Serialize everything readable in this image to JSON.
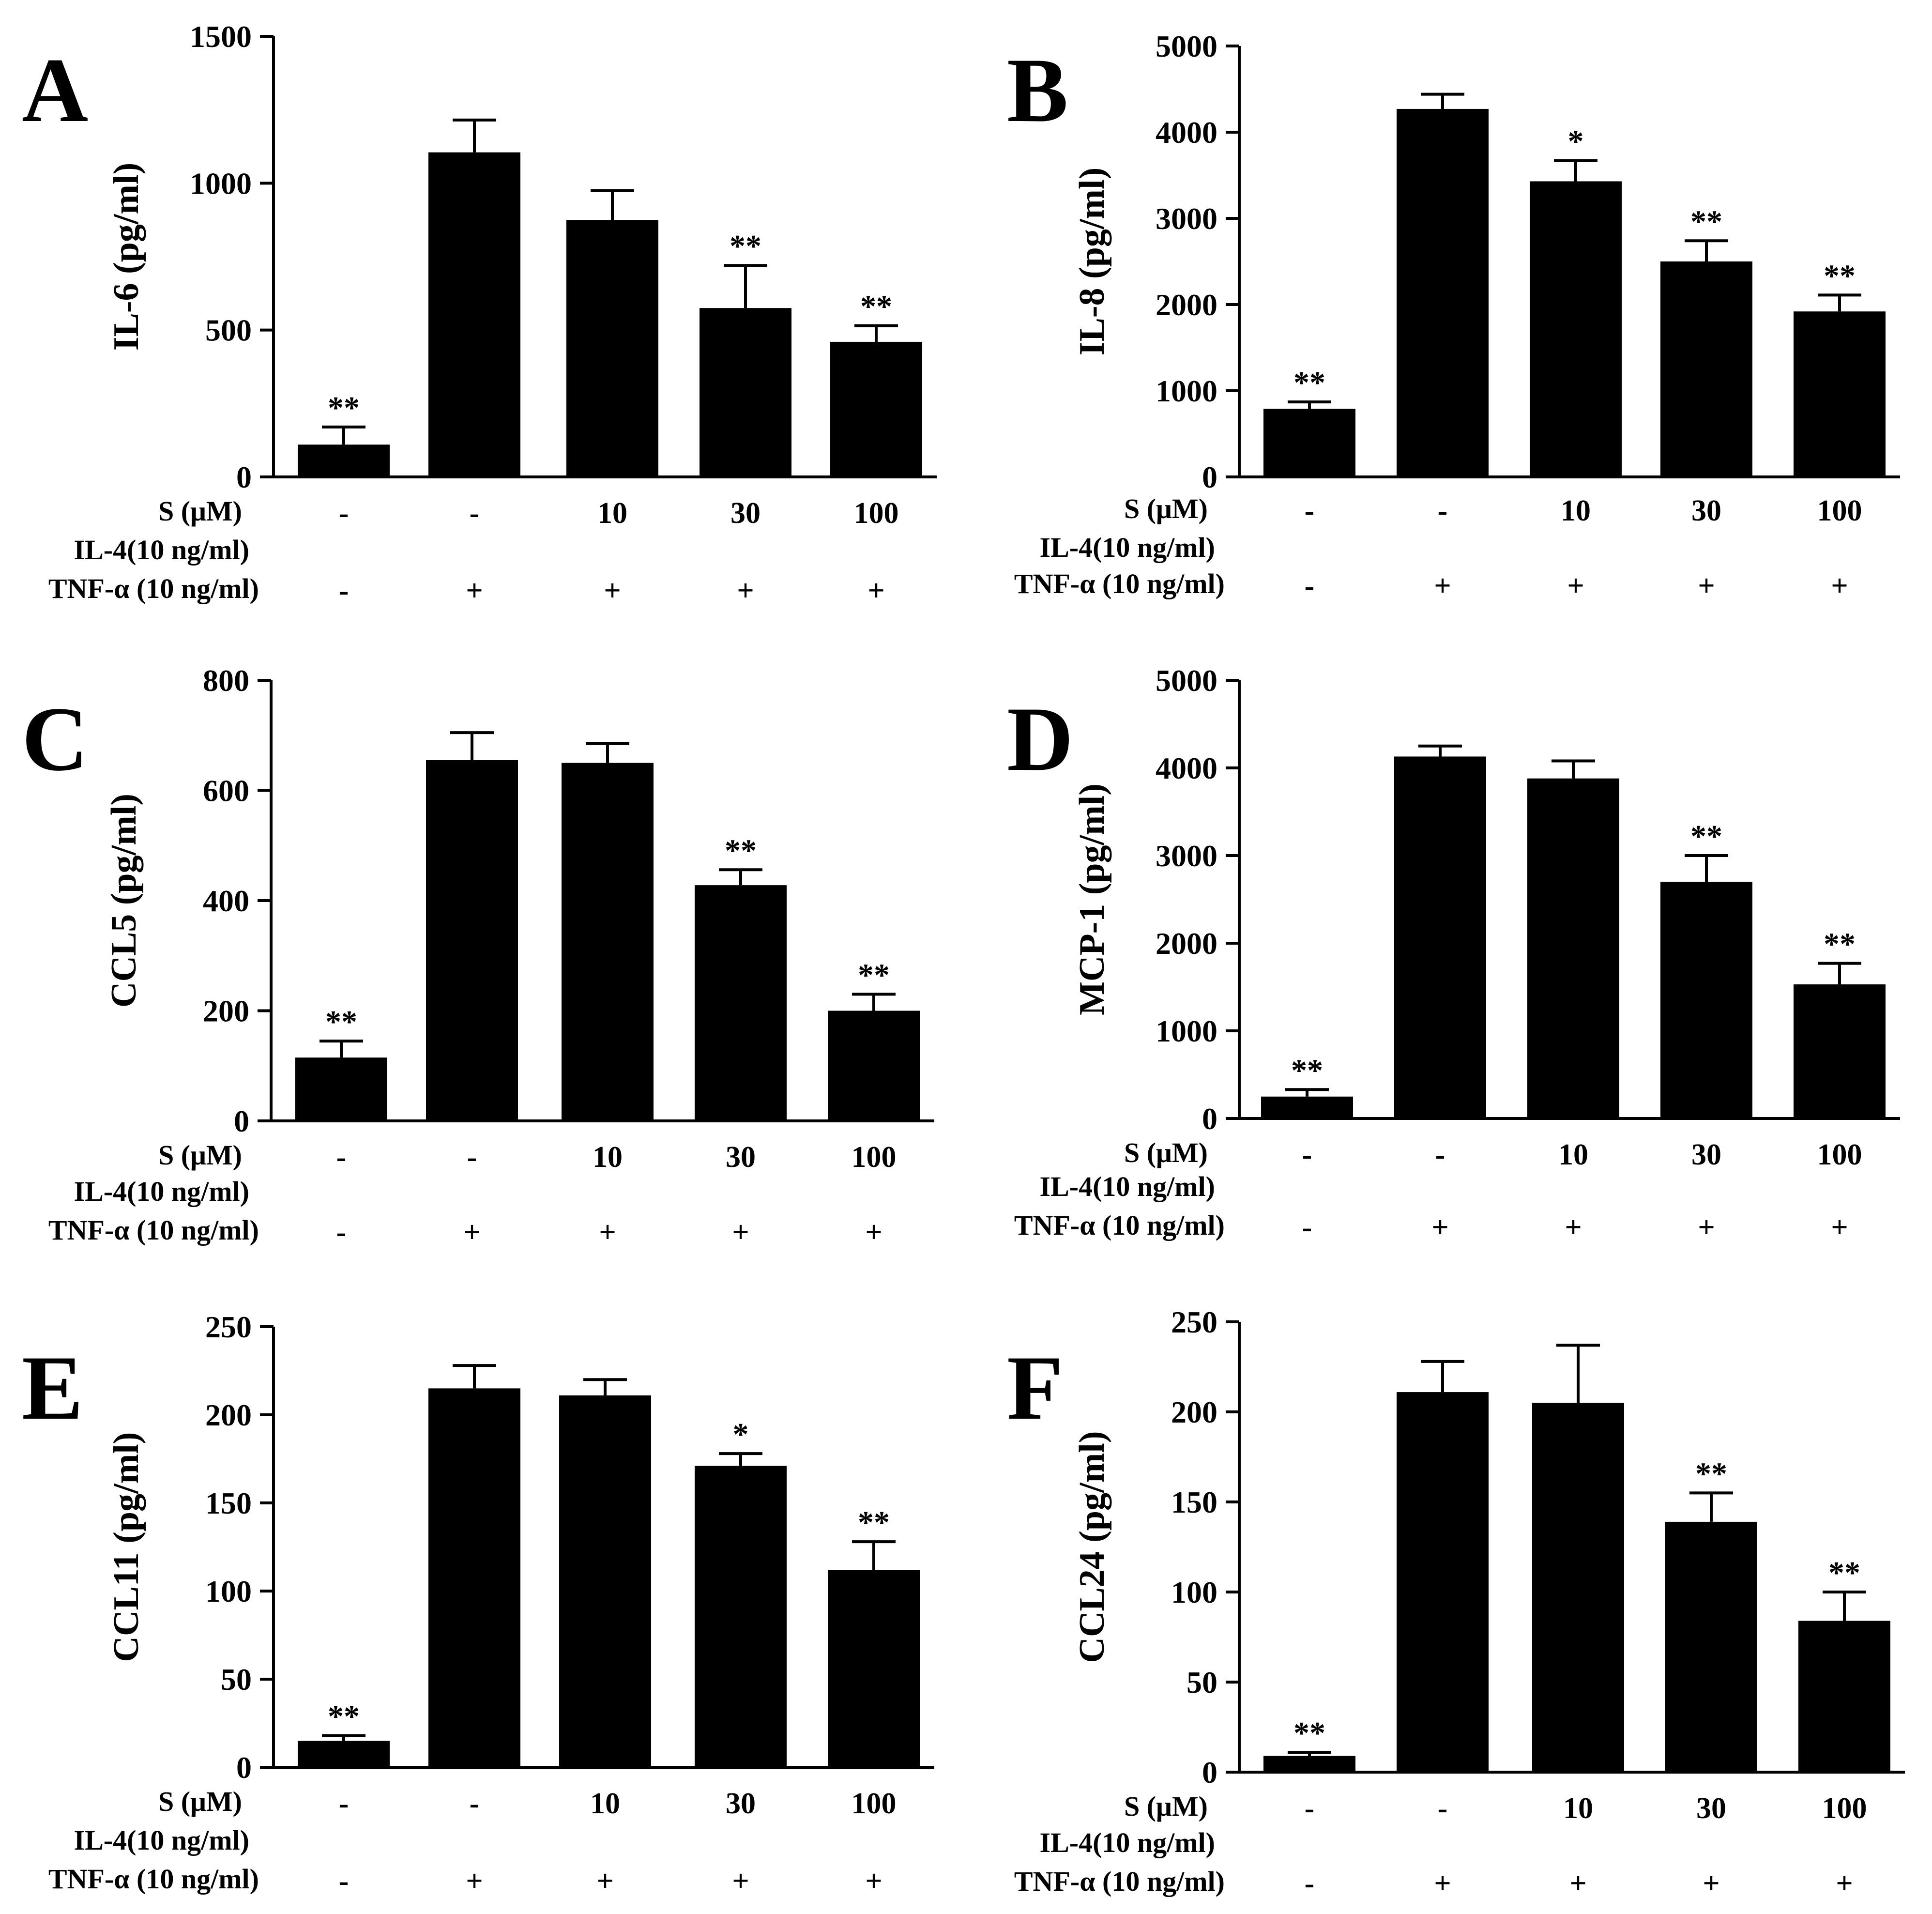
{
  "colors": {
    "bar": "#000000",
    "axis": "#000000",
    "background": "#ffffff"
  },
  "rows": {
    "s_label": "S (μM)",
    "il4_label": "IL-4(10 ng/ml)",
    "tnf_label": "TNF-α (10 ng/ml)"
  },
  "chart_data": [
    {
      "panel": "A",
      "type": "bar",
      "ylabel": "IL-6 (pg/ml)",
      "ylim": [
        0,
        1500
      ],
      "yticks": [
        0,
        500,
        1000,
        1500
      ],
      "categories": [
        "-",
        "-",
        "10",
        "30",
        "100"
      ],
      "s_values": [
        "-",
        "-",
        "10",
        "30",
        "100"
      ],
      "tnf_values": [
        "-",
        "+",
        "+",
        "+",
        "+"
      ],
      "values": [
        110,
        1105,
        875,
        575,
        460
      ],
      "errors": [
        60,
        110,
        100,
        145,
        55
      ],
      "significance": [
        "**",
        "",
        "",
        "**",
        "**"
      ]
    },
    {
      "panel": "B",
      "type": "bar",
      "ylabel": "IL-8 (pg/ml)",
      "ylim": [
        0,
        5000
      ],
      "yticks": [
        0,
        1000,
        2000,
        3000,
        4000,
        5000
      ],
      "categories": [
        "-",
        "-",
        "10",
        "30",
        "100"
      ],
      "s_values": [
        "-",
        "-",
        "10",
        "30",
        "100"
      ],
      "tnf_values": [
        "-",
        "+",
        "+",
        "+",
        "+"
      ],
      "values": [
        790,
        4270,
        3430,
        2500,
        1920
      ],
      "errors": [
        80,
        170,
        240,
        240,
        190
      ],
      "significance": [
        "**",
        "",
        "*",
        "**",
        "**"
      ]
    },
    {
      "panel": "C",
      "type": "bar",
      "ylabel": "CCL5 (pg/ml)",
      "ylim": [
        0,
        800
      ],
      "yticks": [
        0,
        200,
        400,
        600,
        800
      ],
      "categories": [
        "-",
        "-",
        "10",
        "30",
        "100"
      ],
      "s_values": [
        "-",
        "-",
        "10",
        "30",
        "100"
      ],
      "tnf_values": [
        "-",
        "+",
        "+",
        "+",
        "+"
      ],
      "values": [
        115,
        655,
        650,
        428,
        200
      ],
      "errors": [
        30,
        50,
        35,
        28,
        30
      ],
      "significance": [
        "**",
        "",
        "",
        "**",
        "**"
      ]
    },
    {
      "panel": "D",
      "type": "bar",
      "ylabel": "MCP-1 (pg/ml)",
      "ylim": [
        0,
        5000
      ],
      "yticks": [
        0,
        1000,
        2000,
        3000,
        4000,
        5000
      ],
      "categories": [
        "-",
        "-",
        "10",
        "30",
        "100"
      ],
      "s_values": [
        "-",
        "-",
        "10",
        "30",
        "100"
      ],
      "tnf_values": [
        "-",
        "+",
        "+",
        "+",
        "+"
      ],
      "values": [
        250,
        4130,
        3880,
        2700,
        1530
      ],
      "errors": [
        80,
        120,
        200,
        300,
        240
      ],
      "significance": [
        "**",
        "",
        "",
        "**",
        "**"
      ]
    },
    {
      "panel": "E",
      "type": "bar",
      "ylabel": "CCL11 (pg/ml)",
      "ylim": [
        0,
        250
      ],
      "yticks": [
        0,
        50,
        100,
        150,
        200,
        250
      ],
      "categories": [
        "-",
        "-",
        "10",
        "30",
        "100"
      ],
      "s_values": [
        "-",
        "-",
        "10",
        "30",
        "100"
      ],
      "tnf_values": [
        "-",
        "+",
        "+",
        "+",
        "+"
      ],
      "values": [
        15,
        215,
        211,
        171,
        112
      ],
      "errors": [
        3,
        13,
        9,
        7,
        16
      ],
      "significance": [
        "**",
        "",
        "",
        "*",
        "**"
      ]
    },
    {
      "panel": "F",
      "type": "bar",
      "ylabel": "CCL24 (pg/ml)",
      "ylim": [
        0,
        250
      ],
      "yticks": [
        0,
        50,
        100,
        150,
        200,
        250
      ],
      "categories": [
        "-",
        "-",
        "10",
        "30",
        "100"
      ],
      "s_values": [
        "-",
        "-",
        "10",
        "30",
        "100"
      ],
      "tnf_values": [
        "-",
        "+",
        "+",
        "+",
        "+"
      ],
      "values": [
        9,
        211,
        205,
        139,
        84
      ],
      "errors": [
        2,
        17,
        32,
        16,
        16
      ],
      "significance": [
        "**",
        "",
        "",
        "**",
        "**"
      ]
    }
  ]
}
